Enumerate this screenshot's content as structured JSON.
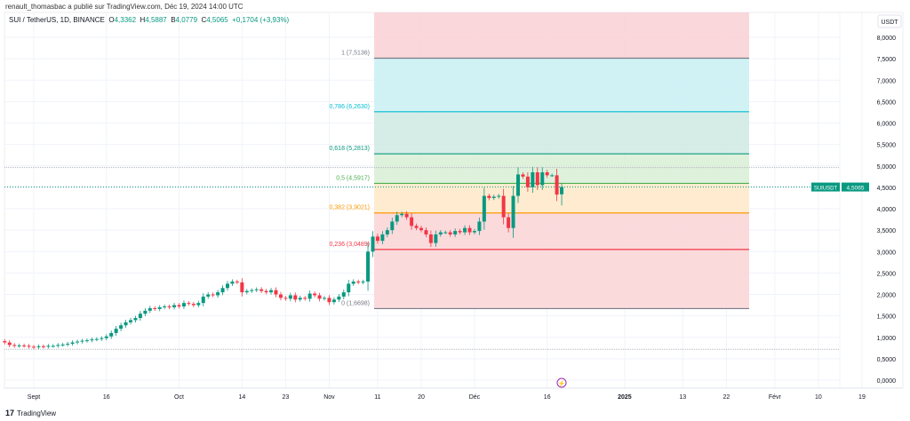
{
  "header": {
    "publisher": "renault_thomasbac a publié sur TradingView.com, Déc 19, 2024 14:00 UTC",
    "symbol": "SUI / TetherUS, 1D, BINANCE",
    "o_label": "O",
    "o": "4,3362",
    "h_label": "H",
    "h": "4,5887",
    "l_label": "B",
    "l": "4,0779",
    "c_label": "C",
    "c": "4,5065",
    "change": "+0,1704 (+3,93%)"
  },
  "footer": {
    "brand": "TradingView"
  },
  "colors": {
    "up": "#089981",
    "down": "#f23645",
    "accent": "#2962ff"
  },
  "chart_data": {
    "type": "candlestick",
    "symbol": "SUIUSDT",
    "currency_label": "USDT",
    "last_price": "4,5065",
    "ylim": [
      0,
      8.3
    ],
    "y_ticks": [
      "0,0000",
      "0,5000",
      "1,0000",
      "1,5000",
      "2,0000",
      "2,5000",
      "3,0000",
      "3,5000",
      "4,0000",
      "4,5000",
      "5,0000",
      "5,5000",
      "6,0000",
      "6,5000",
      "7,0000",
      "7,5000",
      "8,0000"
    ],
    "x_ticks": [
      {
        "label": "Sept",
        "day": 6
      },
      {
        "label": "16",
        "day": 21
      },
      {
        "label": "Oct",
        "day": 36
      },
      {
        "label": "14",
        "day": 49
      },
      {
        "label": "23",
        "day": 58
      },
      {
        "label": "Nov",
        "day": 67
      },
      {
        "label": "11",
        "day": 77
      },
      {
        "label": "20",
        "day": 86
      },
      {
        "label": "Déc",
        "day": 97
      },
      {
        "label": "16",
        "day": 112
      },
      {
        "label": "2025",
        "day": 128,
        "bold": true
      },
      {
        "label": "13",
        "day": 140
      },
      {
        "label": "22",
        "day": 149
      },
      {
        "label": "Févr",
        "day": 159
      },
      {
        "label": "10",
        "day": 168
      },
      {
        "label": "19",
        "day": 177
      }
    ],
    "close": [
      0.88,
      0.82,
      0.8,
      0.81,
      0.8,
      0.78,
      0.77,
      0.79,
      0.78,
      0.8,
      0.8,
      0.82,
      0.83,
      0.85,
      0.88,
      0.9,
      0.92,
      0.93,
      0.95,
      0.96,
      0.98,
      1.02,
      1.1,
      1.2,
      1.28,
      1.35,
      1.4,
      1.45,
      1.55,
      1.62,
      1.68,
      1.66,
      1.7,
      1.72,
      1.7,
      1.75,
      1.72,
      1.8,
      1.78,
      1.75,
      1.8,
      1.95,
      2.0,
      1.98,
      2.05,
      2.15,
      2.25,
      2.3,
      2.28,
      2.05,
      2.08,
      2.1,
      2.12,
      2.08,
      2.05,
      2.1,
      2.0,
      1.92,
      1.9,
      1.98,
      1.88,
      1.92,
      1.9,
      2.02,
      1.98,
      1.9,
      1.92,
      1.82,
      1.88,
      1.95,
      2.05,
      2.25,
      2.3,
      2.28,
      2.3,
      3.0,
      3.35,
      3.25,
      3.4,
      3.5,
      3.7,
      3.85,
      3.88,
      3.8,
      3.6,
      3.55,
      3.5,
      3.4,
      3.2,
      3.4,
      3.45,
      3.45,
      3.4,
      3.48,
      3.45,
      3.55,
      3.45,
      3.48,
      3.7,
      4.3,
      4.25,
      4.28,
      4.3,
      3.8,
      3.55,
      4.3,
      4.8,
      4.75,
      4.5,
      4.85,
      4.55,
      4.85,
      4.78,
      4.78,
      4.33,
      4.5065
    ],
    "last_candle": {
      "open": 4.3362,
      "high": 4.5887,
      "low": 4.0779,
      "close": 4.5065
    },
    "fib_retracement": {
      "levels": [
        {
          "ratio": "1",
          "price": 7.5136,
          "label": "1 (7,5136)",
          "color": "#787b86",
          "fill": "#e0e3eb"
        },
        {
          "ratio": "0.786",
          "price": 6.263,
          "label": "0,786 (6,2630)",
          "color": "#00bcd4",
          "fill": "#c9f0f3"
        },
        {
          "ratio": "0.618",
          "price": 5.2813,
          "label": "0,618 (5,2813)",
          "color": "#089981",
          "fill": "#cfe9e3"
        },
        {
          "ratio": "0.5",
          "price": 4.5917,
          "label": "0,5 (4,5917)",
          "color": "#4caf50",
          "fill": "#d8eed5"
        },
        {
          "ratio": "0.382",
          "price": 3.9021,
          "label": "0,382 (3,9021)",
          "color": "#ff9800",
          "fill": "#ffe9c8"
        },
        {
          "ratio": "0.236",
          "price": 3.0489,
          "label": "0,236 (3,0489)",
          "color": "#f23645",
          "fill": "#fad3d6"
        },
        {
          "ratio": "0",
          "price": 1.6698,
          "label": "0 (1,6698)",
          "color": "#787b86",
          "fill": null
        }
      ],
      "extension_fill": "#fad3d6"
    },
    "horizontal_lines": [
      4.96,
      0.72
    ]
  }
}
